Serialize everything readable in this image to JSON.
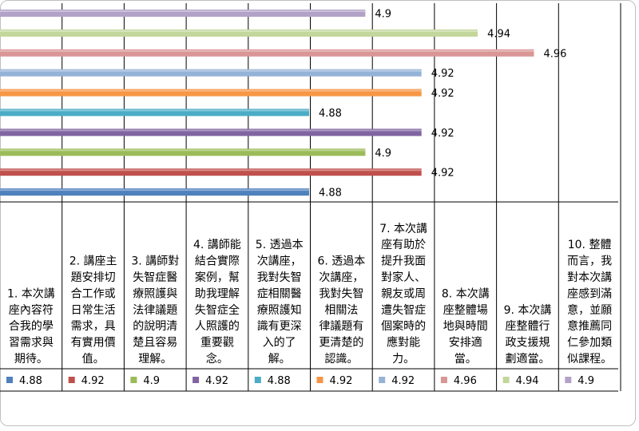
{
  "chart_data": {
    "type": "bar",
    "orientation": "horizontal",
    "title": "",
    "xlabel": "",
    "ylabel": "",
    "xlim": [
      4.77,
      4.99
    ],
    "grid": true,
    "legend": "data-table-below",
    "categories": [
      "1. 本次講座內容符合我的學習需求與期待。",
      "2. 講座主題安排切合工作或日常生活需求，具有實用價值。",
      "3. 講師對失智症醫療照護與法律議題的說明清楚且容易理解。",
      "4. 講師能結合實際案例，幫助我理解失智症全人照護的重要觀念。",
      "5. 透過本次講座，我對失智症相關醫療照護知識有更深入的了解。",
      "6. 透過本次講座，我對失智相關法律議題有更清楚的認識。",
      "7. 本次講座有助於提升我面對家人、親友或周遭失智症個案時的應對能力。",
      "8. 本次講座整體場地與時間安排適當。",
      "9. 本次講座整體行政支援規劃適當。",
      "10. 整體而言，我對本次講座感到滿意，並願意推薦同仁參加類似課程。"
    ],
    "category_lines": [
      [
        "1. 本次講",
        "座內容符",
        "合我的學",
        "習需求與",
        "期待。"
      ],
      [
        "2. 講座主",
        "題安排切",
        "合工作或",
        "日常生活",
        "需求，具",
        "有實用價",
        "值。"
      ],
      [
        "3. 講師對",
        "失智症醫",
        "療照護與",
        "法律議題",
        "的說明清",
        "楚且容易",
        "理解。"
      ],
      [
        "4. 講師能",
        "結合實際",
        "案例，幫",
        "助我理解",
        "失智症全",
        "人照護的",
        "重要觀",
        "念。"
      ],
      [
        "5. 透過本",
        "次講座，",
        "我對失智",
        "症相關醫",
        "療照護知",
        "識有更深",
        "入的了",
        "解。"
      ],
      [
        "6. 透過本",
        "次講座，",
        "我對失智",
        "相關法",
        "律議題有",
        "更清楚的",
        "認識。"
      ],
      [
        "7. 本次講",
        "座有助於",
        "提升我面",
        "對家人、",
        "親友或周",
        "遭失智症",
        "個案時的",
        "應對能",
        "力。"
      ],
      [
        "8. 本次講",
        "座整體場",
        "地與時間",
        "安排適",
        "當。"
      ],
      [
        "9. 本次講",
        "座整體行",
        "政支援規",
        "劃適當。"
      ],
      [
        "10. 整體",
        "而言，我",
        "對本次講",
        "座感到滿",
        "意，並願",
        "意推薦同",
        "仁參加類",
        "似課程。"
      ]
    ],
    "values": [
      4.88,
      4.92,
      4.9,
      4.92,
      4.88,
      4.92,
      4.92,
      4.96,
      4.94,
      4.9
    ],
    "value_labels": [
      "4.88",
      "4.92",
      "4.9",
      "4.92",
      "4.88",
      "4.92",
      "4.92",
      "4.96",
      "4.94",
      "4.9"
    ],
    "colors": [
      "#4f81bd",
      "#c0504d",
      "#9bbb59",
      "#8064a2",
      "#4bacc6",
      "#f79646",
      "#95b3d7",
      "#d99694",
      "#c3d69b",
      "#b3a2c7"
    ]
  }
}
